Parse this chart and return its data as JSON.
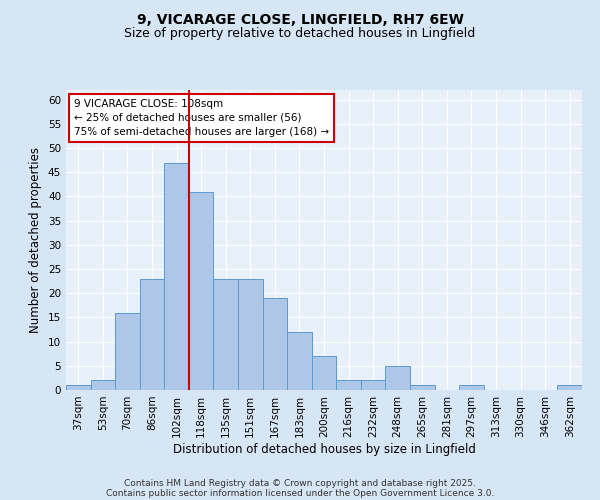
{
  "title1": "9, VICARAGE CLOSE, LINGFIELD, RH7 6EW",
  "title2": "Size of property relative to detached houses in Lingfield",
  "xlabel": "Distribution of detached houses by size in Lingfield",
  "ylabel": "Number of detached properties",
  "categories": [
    "37sqm",
    "53sqm",
    "70sqm",
    "86sqm",
    "102sqm",
    "118sqm",
    "135sqm",
    "151sqm",
    "167sqm",
    "183sqm",
    "200sqm",
    "216sqm",
    "232sqm",
    "248sqm",
    "265sqm",
    "281sqm",
    "297sqm",
    "313sqm",
    "330sqm",
    "346sqm",
    "362sqm"
  ],
  "values": [
    1,
    2,
    16,
    23,
    47,
    41,
    23,
    23,
    19,
    12,
    7,
    2,
    2,
    5,
    1,
    0,
    1,
    0,
    0,
    0,
    1
  ],
  "bar_color": "#aec6e8",
  "bar_edge_color": "#5b9bd5",
  "vline_x": 4.5,
  "vline_color": "#cc0000",
  "annotation_line1": "9 VICARAGE CLOSE: 108sqm",
  "annotation_line2": "← 25% of detached houses are smaller (56)",
  "annotation_line3": "75% of semi-detached houses are larger (168) →",
  "annotation_box_color": "#ffffff",
  "annotation_box_edge_color": "#cc0000",
  "ylim": [
    0,
    62
  ],
  "yticks": [
    0,
    5,
    10,
    15,
    20,
    25,
    30,
    35,
    40,
    45,
    50,
    55,
    60
  ],
  "background_color": "#d6e6f5",
  "plot_background": "#e8f1fa",
  "footer_line1": "Contains HM Land Registry data © Crown copyright and database right 2025.",
  "footer_line2": "Contains public sector information licensed under the Open Government Licence 3.0.",
  "title1_fontsize": 10,
  "title2_fontsize": 9,
  "xlabel_fontsize": 8.5,
  "ylabel_fontsize": 8.5,
  "tick_fontsize": 7.5,
  "footer_fontsize": 6.5,
  "annotation_fontsize": 7.5
}
